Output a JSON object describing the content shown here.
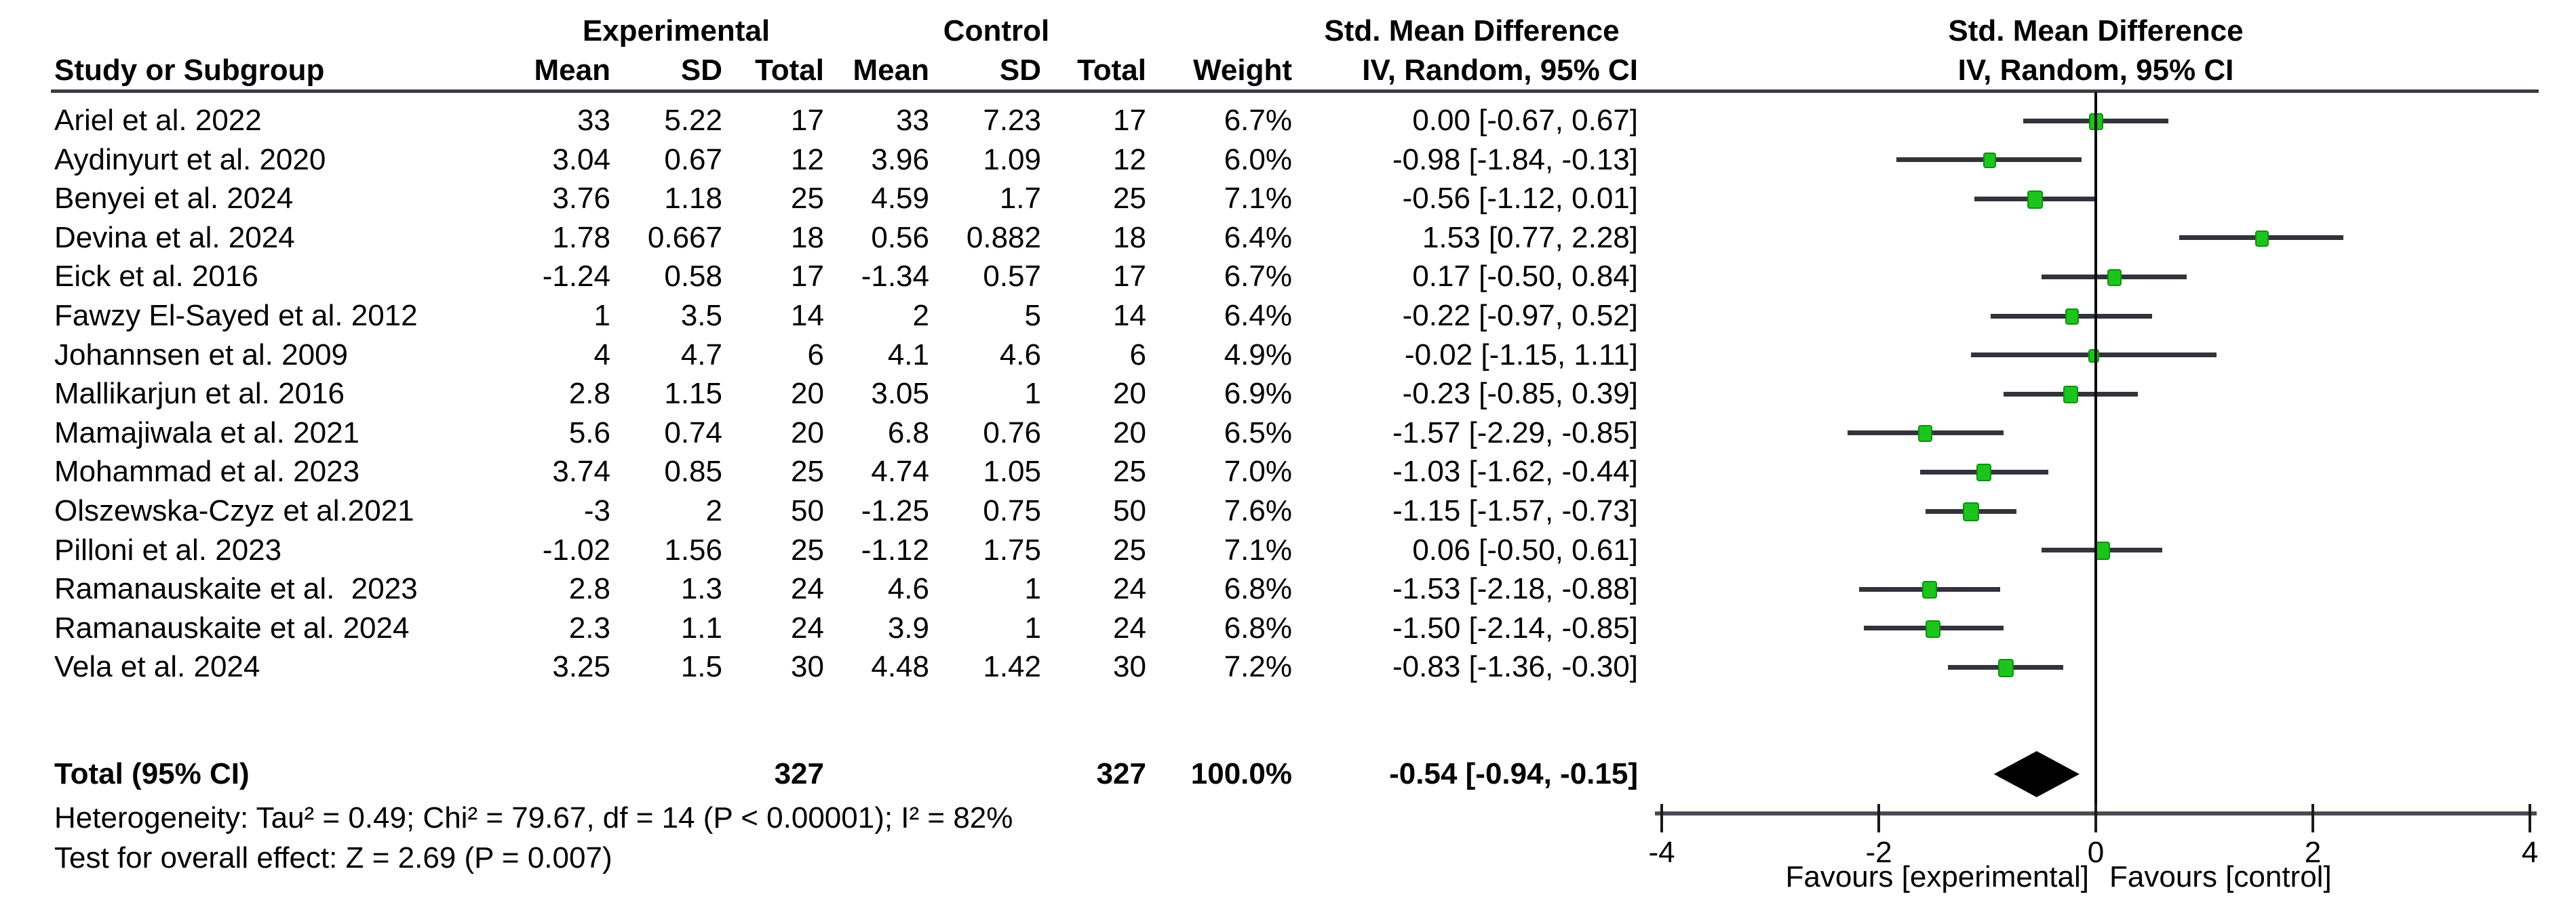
{
  "headers": {
    "experimental": "Experimental",
    "control": "Control",
    "smd": "Std. Mean Difference",
    "study": "Study or Subgroup",
    "mean": "Mean",
    "sd": "SD",
    "total": "Total",
    "weight": "Weight",
    "iv_ci": "IV, Random, 95% CI"
  },
  "chart_data": {
    "type": "forest",
    "axis": {
      "min": -4,
      "max": 4,
      "ticks": [
        -4,
        -2,
        0,
        2,
        4
      ]
    },
    "favours_left": "Favours [experimental]",
    "favours_right": "Favours [control]",
    "studies": [
      {
        "name": "Ariel et al. 2022",
        "exp_mean": "33",
        "exp_sd": "5.22",
        "exp_total": "17",
        "ctl_mean": "33",
        "ctl_sd": "7.23",
        "ctl_total": "17",
        "weight": "6.7%",
        "smd_text": "0.00 [-0.67, 0.67]",
        "est": 0.0,
        "lo": -0.67,
        "hi": 0.67,
        "weight_value": 6.7
      },
      {
        "name": "Aydinyurt et al. 2020",
        "exp_mean": "3.04",
        "exp_sd": "0.67",
        "exp_total": "12",
        "ctl_mean": "3.96",
        "ctl_sd": "1.09",
        "ctl_total": "12",
        "weight": "6.0%",
        "smd_text": "-0.98 [-1.84, -0.13]",
        "est": -0.98,
        "lo": -1.84,
        "hi": -0.13,
        "weight_value": 6.0
      },
      {
        "name": "Benyei et al. 2024",
        "exp_mean": "3.76",
        "exp_sd": "1.18",
        "exp_total": "25",
        "ctl_mean": "4.59",
        "ctl_sd": "1.7",
        "ctl_total": "25",
        "weight": "7.1%",
        "smd_text": "-0.56 [-1.12, 0.01]",
        "est": -0.56,
        "lo": -1.12,
        "hi": 0.01,
        "weight_value": 7.1
      },
      {
        "name": "Devina et al. 2024",
        "exp_mean": "1.78",
        "exp_sd": "0.667",
        "exp_total": "18",
        "ctl_mean": "0.56",
        "ctl_sd": "0.882",
        "ctl_total": "18",
        "weight": "6.4%",
        "smd_text": "1.53 [0.77, 2.28]",
        "est": 1.53,
        "lo": 0.77,
        "hi": 2.28,
        "weight_value": 6.4
      },
      {
        "name": "Eick et al. 2016",
        "exp_mean": "-1.24",
        "exp_sd": "0.58",
        "exp_total": "17",
        "ctl_mean": "-1.34",
        "ctl_sd": "0.57",
        "ctl_total": "17",
        "weight": "6.7%",
        "smd_text": "0.17 [-0.50, 0.84]",
        "est": 0.17,
        "lo": -0.5,
        "hi": 0.84,
        "weight_value": 6.7
      },
      {
        "name": "Fawzy El-Sayed et al. 2012",
        "exp_mean": "1",
        "exp_sd": "3.5",
        "exp_total": "14",
        "ctl_mean": "2",
        "ctl_sd": "5",
        "ctl_total": "14",
        "weight": "6.4%",
        "smd_text": "-0.22 [-0.97, 0.52]",
        "est": -0.22,
        "lo": -0.97,
        "hi": 0.52,
        "weight_value": 6.4
      },
      {
        "name": "Johannsen et al. 2009",
        "exp_mean": "4",
        "exp_sd": "4.7",
        "exp_total": "6",
        "ctl_mean": "4.1",
        "ctl_sd": "4.6",
        "ctl_total": "6",
        "weight": "4.9%",
        "smd_text": "-0.02 [-1.15, 1.11]",
        "est": -0.02,
        "lo": -1.15,
        "hi": 1.11,
        "weight_value": 4.9
      },
      {
        "name": "Mallikarjun et al. 2016",
        "exp_mean": "2.8",
        "exp_sd": "1.15",
        "exp_total": "20",
        "ctl_mean": "3.05",
        "ctl_sd": "1",
        "ctl_total": "20",
        "weight": "6.9%",
        "smd_text": "-0.23 [-0.85, 0.39]",
        "est": -0.23,
        "lo": -0.85,
        "hi": 0.39,
        "weight_value": 6.9
      },
      {
        "name": "Mamajiwala et al. 2021",
        "exp_mean": "5.6",
        "exp_sd": "0.74",
        "exp_total": "20",
        "ctl_mean": "6.8",
        "ctl_sd": "0.76",
        "ctl_total": "20",
        "weight": "6.5%",
        "smd_text": "-1.57 [-2.29, -0.85]",
        "est": -1.57,
        "lo": -2.29,
        "hi": -0.85,
        "weight_value": 6.5
      },
      {
        "name": "Mohammad et al. 2023",
        "exp_mean": "3.74",
        "exp_sd": "0.85",
        "exp_total": "25",
        "ctl_mean": "4.74",
        "ctl_sd": "1.05",
        "ctl_total": "25",
        "weight": "7.0%",
        "smd_text": "-1.03 [-1.62, -0.44]",
        "est": -1.03,
        "lo": -1.62,
        "hi": -0.44,
        "weight_value": 7.0
      },
      {
        "name": "Olszewska-Czyz et al.2021",
        "exp_mean": "-3",
        "exp_sd": "2",
        "exp_total": "50",
        "ctl_mean": "-1.25",
        "ctl_sd": "0.75",
        "ctl_total": "50",
        "weight": "7.6%",
        "smd_text": "-1.15 [-1.57, -0.73]",
        "est": -1.15,
        "lo": -1.57,
        "hi": -0.73,
        "weight_value": 7.6
      },
      {
        "name": "Pilloni et al. 2023",
        "exp_mean": "-1.02",
        "exp_sd": "1.56",
        "exp_total": "25",
        "ctl_mean": "-1.12",
        "ctl_sd": "1.75",
        "ctl_total": "25",
        "weight": "7.1%",
        "smd_text": "0.06 [-0.50, 0.61]",
        "est": 0.06,
        "lo": -0.5,
        "hi": 0.61,
        "weight_value": 7.1
      },
      {
        "name": "Ramanauskaite et al.  2023",
        "exp_mean": "2.8",
        "exp_sd": "1.3",
        "exp_total": "24",
        "ctl_mean": "4.6",
        "ctl_sd": "1",
        "ctl_total": "24",
        "weight": "6.8%",
        "smd_text": "-1.53 [-2.18, -0.88]",
        "est": -1.53,
        "lo": -2.18,
        "hi": -0.88,
        "weight_value": 6.8
      },
      {
        "name": "Ramanauskaite et al. 2024",
        "exp_mean": "2.3",
        "exp_sd": "1.1",
        "exp_total": "24",
        "ctl_mean": "3.9",
        "ctl_sd": "1",
        "ctl_total": "24",
        "weight": "6.8%",
        "smd_text": "-1.50 [-2.14, -0.85]",
        "est": -1.5,
        "lo": -2.14,
        "hi": -0.85,
        "weight_value": 6.8
      },
      {
        "name": "Vela et al. 2024",
        "exp_mean": "3.25",
        "exp_sd": "1.5",
        "exp_total": "30",
        "ctl_mean": "4.48",
        "ctl_sd": "1.42",
        "ctl_total": "30",
        "weight": "7.2%",
        "smd_text": "-0.83 [-1.36, -0.30]",
        "est": -0.83,
        "lo": -1.36,
        "hi": -0.3,
        "weight_value": 7.2
      }
    ],
    "total": {
      "label": "Total (95% CI)",
      "exp_total": "327",
      "ctl_total": "327",
      "weight": "100.0%",
      "smd_text": "-0.54 [-0.94, -0.15]",
      "est": -0.54,
      "lo": -0.94,
      "hi": -0.15
    },
    "footer": {
      "heterogeneity": "Heterogeneity: Tau² = 0.49; Chi² = 79.67, df = 14 (P < 0.00001); I² = 82%",
      "overall_effect": "Test for overall effect: Z = 2.69 (P = 0.007)"
    }
  },
  "colors": {
    "marker": "#1ec41e",
    "marker_border": "#0c930c",
    "ci_line": "#33333b",
    "diamond": "#000000",
    "text": "#000000"
  }
}
